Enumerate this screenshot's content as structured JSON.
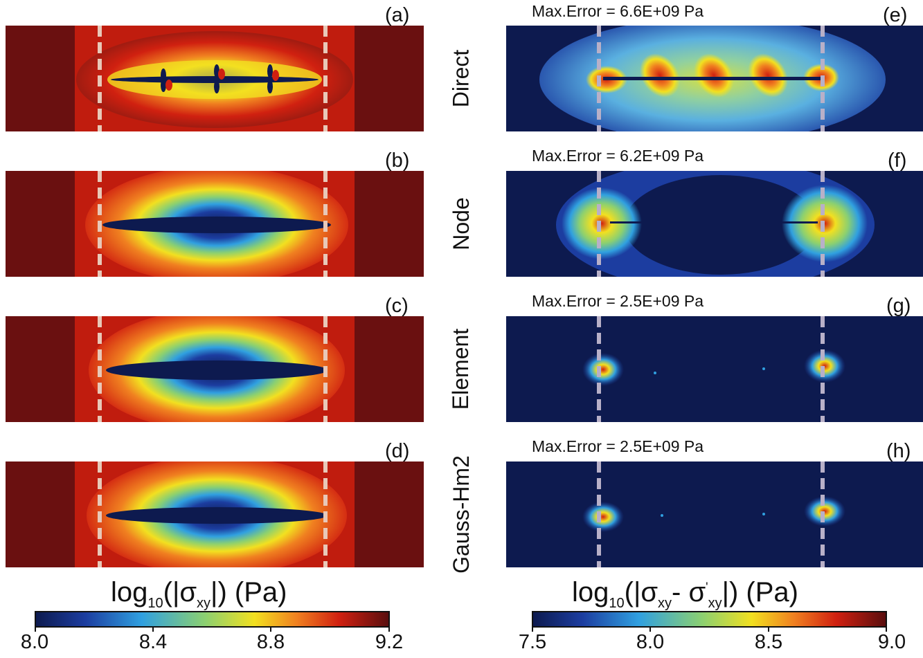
{
  "left_panels": [
    {
      "label": "(a)"
    },
    {
      "label": "(b)"
    },
    {
      "label": "(c)"
    },
    {
      "label": "(d)"
    }
  ],
  "right_panels": [
    {
      "label": "(e)",
      "method": "Direct",
      "error": "Max.Error = 6.6E+09 Pa"
    },
    {
      "label": "(f)",
      "method": "Node",
      "error": "Max.Error = 6.2E+09 Pa"
    },
    {
      "label": "(g)",
      "method": "Element",
      "error": "Max.Error = 2.5E+09 Pa"
    },
    {
      "label": "(h)",
      "method": "Gauss-Hm2",
      "error": "Max.Error = 2.5E+09 Pa"
    }
  ],
  "colorbar_left": {
    "title_main": "log",
    "title_sub": "10",
    "title_rest": "(|σ",
    "title_sub2": "xy",
    "title_end": "|) (Pa)",
    "ticks": [
      "8.0",
      "8.4",
      "8.8",
      "9.2"
    ]
  },
  "colorbar_right": {
    "title_main": "log",
    "title_sub": "10",
    "title_rest": "(|σ",
    "title_sub2": "xy",
    "title_mid": "- σ",
    "title_sup": "'",
    "title_sub3": "xy",
    "title_end": "|) (Pa)",
    "ticks": [
      "7.5",
      "8.0",
      "8.5",
      "9.0"
    ]
  },
  "colors": {
    "jet_dark_red": "#5a0e0e",
    "jet_red": "#d02010",
    "jet_orange": "#f08020",
    "jet_yellow": "#f2e020",
    "jet_green": "#8cd070",
    "jet_cyan": "#30a0e0",
    "jet_blue": "#1c3da0",
    "jet_navy": "#0d1a4f",
    "dash_line": "#e8c8b8",
    "dash_line_right": "#b8b0c8"
  }
}
